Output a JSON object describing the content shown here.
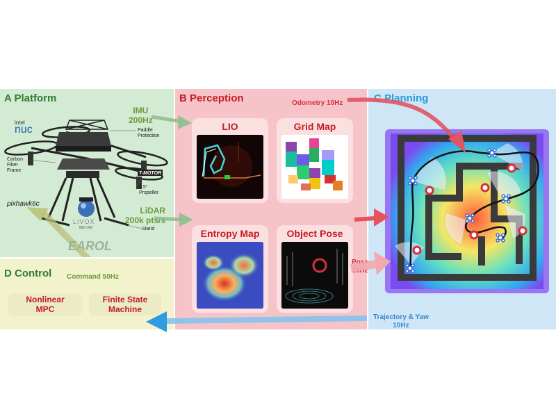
{
  "platform": {
    "title": "A  Platform",
    "imu": [
      "IMU",
      "200Hz"
    ],
    "lidar": [
      "LiDAR",
      "200k pts/s"
    ],
    "parts": {
      "intel": "intel",
      "nuc": "nuc",
      "paddle": [
        "Paddle",
        "Protection"
      ],
      "carbon": [
        "Carbon",
        "Fiber",
        "Frame"
      ],
      "tmotor": "T-MOTOR",
      "propeller": [
        "8.5\"",
        "Propeller"
      ],
      "pixhawk": "pixhawk6c",
      "livox": "LIVOX",
      "mid": "MID-360",
      "stand": "Stand"
    },
    "name": "EAROL"
  },
  "control": {
    "title": "D  Control",
    "command": "Command 50Hz",
    "mpc": [
      "Nonlinear",
      "MPC"
    ],
    "fsm": [
      "Finite State",
      "Machine"
    ]
  },
  "perception": {
    "title": "B  Perception",
    "odometry": "Odometry 10Hz",
    "cards": [
      "LIO",
      "Grid Map",
      "Entropy Map",
      "Object Pose"
    ],
    "pose": [
      "Pose",
      "10Hz"
    ]
  },
  "planning": {
    "title": "C  Planning",
    "trajectory": [
      "Trajectory & Yaw",
      "10Hz"
    ]
  },
  "colors": {
    "platform_title": "#2e7d32",
    "perception_title": "#c31d24",
    "planning_title": "#2b9bd6",
    "control_title": "#2e7d32",
    "green_text": "#6b9b3a",
    "red_text": "#d7303a",
    "blue_text": "#3a87c8"
  }
}
